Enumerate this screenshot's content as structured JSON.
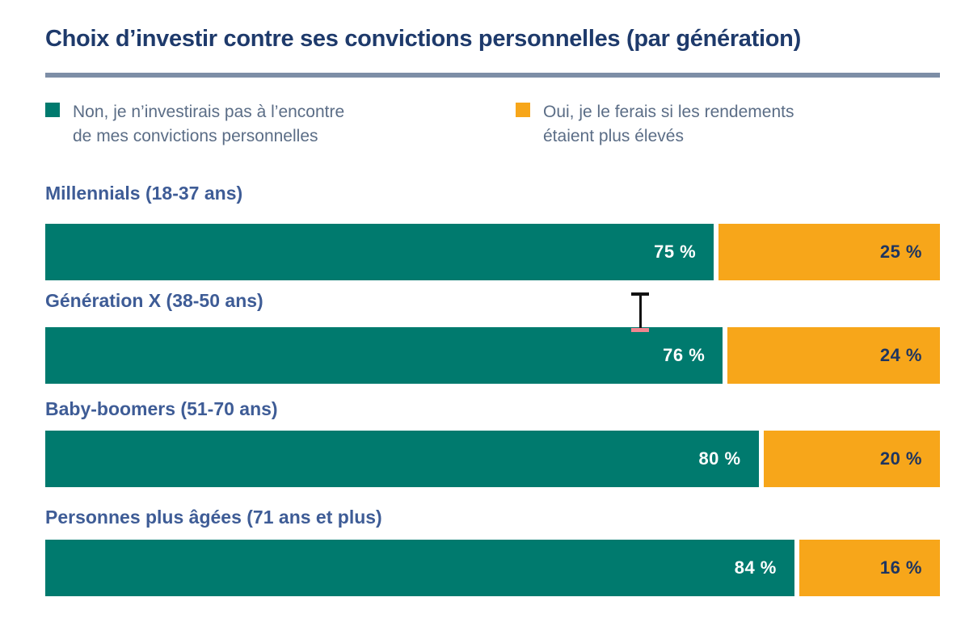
{
  "title": "Choix d’investir contre ses convictions personnelles (par génération)",
  "legend": {
    "no": {
      "line1": "Non, je n’investirais pas à l’encontre",
      "line2": "de mes convictions personnelles"
    },
    "yes": {
      "line1": "Oui, je le ferais si les rendements",
      "line2": "étaient plus élevés"
    }
  },
  "rows": [
    {
      "category": "Millennials (18-37 ans)",
      "no_pct": 75,
      "yes_pct": 25,
      "no_text": "75 %",
      "yes_text": "25 %"
    },
    {
      "category": "Génération X (38-50 ans)",
      "no_pct": 76,
      "yes_pct": 24,
      "no_text": "76 %",
      "yes_text": "24 %"
    },
    {
      "category": "Baby-boomers (51-70 ans)",
      "no_pct": 80,
      "yes_pct": 20,
      "no_text": "80 %",
      "yes_text": "20 %"
    },
    {
      "category": "Personnes plus âgées (71 ans et plus)",
      "no_pct": 84,
      "yes_pct": 16,
      "no_text": "84 %",
      "yes_text": "16 %"
    }
  ],
  "colors": {
    "no_segment": "#007a6e",
    "yes_segment": "#f7a61a",
    "title_text": "#1e3a6b",
    "category_text": "#3e5c96",
    "legend_text": "#5b6d86",
    "divider": "#7d8ea6",
    "pct_on_orange": "#1e3560",
    "pct_on_teal": "#ffffff"
  },
  "cursor": {
    "type": "text-ibeam"
  },
  "chart_data": {
    "type": "bar",
    "orientation": "horizontal",
    "stacked": true,
    "title": "Choix d’investir contre ses convictions personnelles (par génération)",
    "categories": [
      "Millennials (18-37 ans)",
      "Génération X (38-50 ans)",
      "Baby-boomers (51-70 ans)",
      "Personnes plus âgées (71 ans et plus)"
    ],
    "series": [
      {
        "name": "Non, je n’investirais pas à l’encontre de mes convictions personnelles",
        "values": [
          75,
          76,
          80,
          84
        ],
        "color": "#007a6e"
      },
      {
        "name": "Oui, je le ferais si les rendements étaient plus élevés",
        "values": [
          25,
          24,
          20,
          16
        ],
        "color": "#f7a61a"
      }
    ],
    "value_suffix": " %",
    "xlim": [
      0,
      100
    ],
    "xlabel": "",
    "ylabel": "",
    "grid": false,
    "legend_position": "top",
    "data_labels": "inside-right"
  }
}
